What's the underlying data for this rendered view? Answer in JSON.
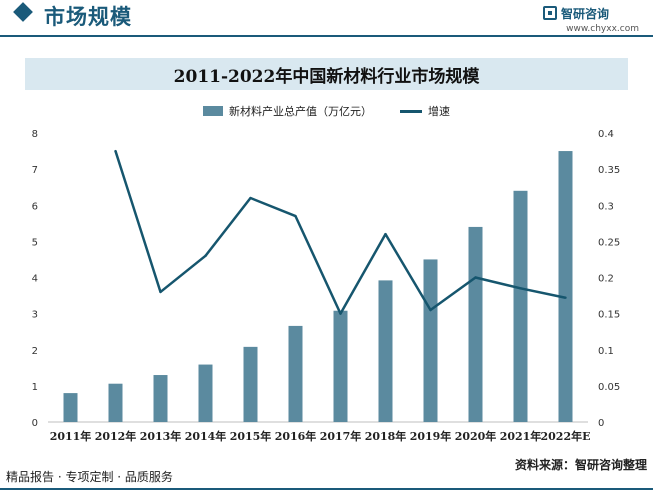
{
  "header": {
    "title": "市场规模",
    "brand_name": "智研咨询",
    "brand_url": "www.chyxx.com"
  },
  "footer": {
    "tagline": "精品报告 · 专项定制 · 品质服务",
    "source": "资料来源：智研咨询整理"
  },
  "colors": {
    "bar": "#5b8a9f",
    "line": "#16566e",
    "accent": "#1a5a7a",
    "title_band": "#d9e8f0"
  },
  "chart_data": {
    "type": "bar",
    "title": "2011-2022年中国新材料行业市场规模",
    "categories": [
      "2011年",
      "2012年",
      "2013年",
      "2014年",
      "2015年",
      "2016年",
      "2017年",
      "2018年",
      "2019年",
      "2020年",
      "2021年",
      "2022年E"
    ],
    "series": [
      {
        "name": "新材料产业总产值（万亿元）",
        "type": "bar",
        "axis": "left",
        "values": [
          0.8,
          1.06,
          1.3,
          1.59,
          2.08,
          2.66,
          3.08,
          3.92,
          4.5,
          5.4,
          6.4,
          7.5
        ]
      },
      {
        "name": "增速",
        "type": "line",
        "axis": "right",
        "values": [
          null,
          0.375,
          0.18,
          0.23,
          0.31,
          0.285,
          0.15,
          0.26,
          0.155,
          0.2,
          0.185,
          0.172
        ]
      }
    ],
    "y_left": {
      "range": [
        0,
        8
      ],
      "ticks": [
        "0",
        "1",
        "2",
        "3",
        "4",
        "5",
        "6",
        "7",
        "8"
      ]
    },
    "y_right": {
      "range": [
        0,
        0.4
      ],
      "ticks": [
        "0",
        "0.05",
        "0.1",
        "0.15",
        "0.2",
        "0.25",
        "0.3",
        "0.35",
        "0.4"
      ]
    },
    "grid": false,
    "legend_position": "top-center"
  }
}
